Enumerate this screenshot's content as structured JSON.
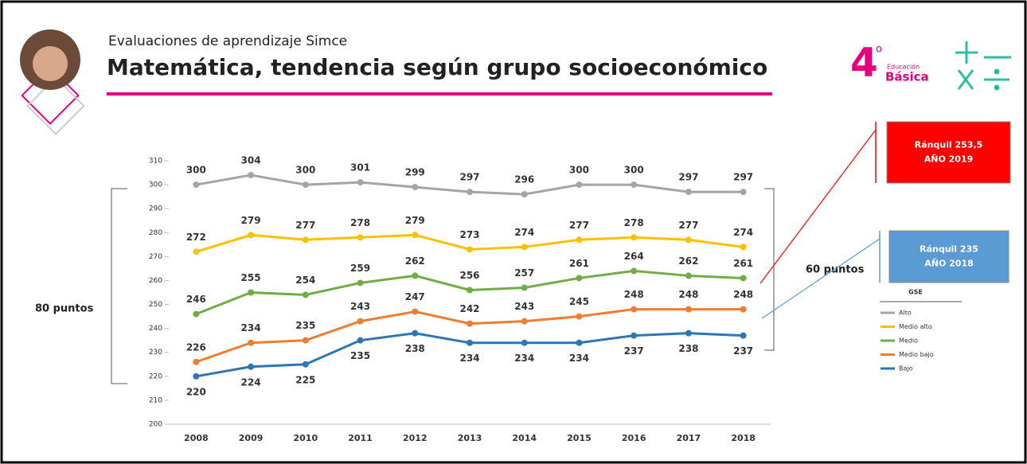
{
  "header": {
    "subtitle": "Evaluaciones de aprendizaje Simce",
    "title": "Matemática, tendencia según grupo socioeconómico",
    "grade": "4",
    "grade_mark": "o",
    "level_top": "Educación",
    "level": "Básica"
  },
  "chart_data": {
    "type": "line",
    "categories": [
      "2008",
      "2009",
      "2010",
      "2011",
      "2012",
      "2013",
      "2014",
      "2015",
      "2016",
      "2017",
      "2018"
    ],
    "ylim": [
      200,
      310
    ],
    "yticks": [
      200,
      210,
      220,
      230,
      240,
      250,
      260,
      270,
      280,
      290,
      300,
      310
    ],
    "legend_title": "GSE",
    "series": [
      {
        "name": "Alto",
        "color": "#a5a5a5",
        "values": [
          300,
          304,
          300,
          301,
          299,
          297,
          296,
          300,
          300,
          297,
          297
        ],
        "label_side": "above"
      },
      {
        "name": "Medio alto",
        "color": "#ffc000",
        "values": [
          272,
          279,
          277,
          278,
          279,
          273,
          274,
          277,
          278,
          277,
          274
        ],
        "label_side": "above"
      },
      {
        "name": "Medio",
        "color": "#70ad47",
        "values": [
          246,
          255,
          254,
          259,
          262,
          256,
          257,
          261,
          264,
          262,
          261
        ],
        "label_side": "above"
      },
      {
        "name": "Medio bajo",
        "color": "#ed7d31",
        "values": [
          226,
          234,
          235,
          243,
          247,
          242,
          243,
          245,
          248,
          248,
          248
        ],
        "label_side": "above"
      },
      {
        "name": "Bajo",
        "color": "#2e75b6",
        "values": [
          220,
          224,
          225,
          235,
          238,
          234,
          234,
          234,
          237,
          238,
          237
        ],
        "label_side": "below"
      }
    ],
    "annotations": [
      "80 puntos",
      "60 puntos"
    ],
    "callouts": [
      {
        "lines": [
          "Ránquil 253,5",
          "AÑO 2019"
        ],
        "color": "#ff0000"
      },
      {
        "lines": [
          "Ránquil 235",
          "AÑO 2018"
        ],
        "color": "#5b9bd5"
      }
    ]
  }
}
